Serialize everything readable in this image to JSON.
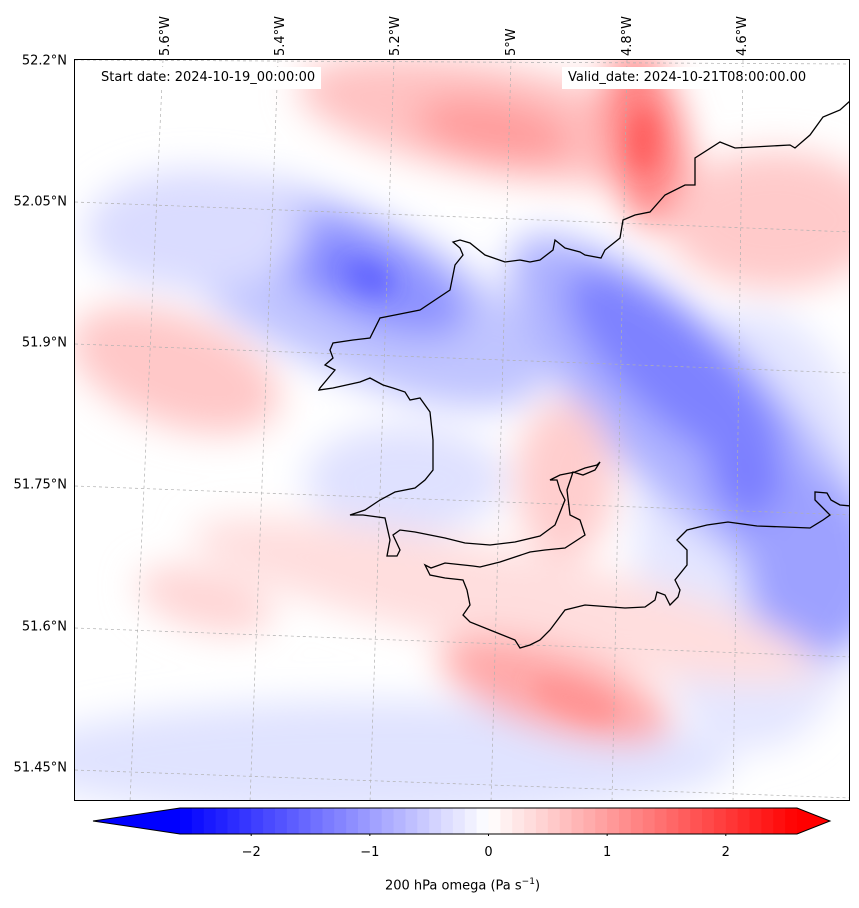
{
  "map": {
    "start_date": "Start date: 2024-10-19_00:00:00",
    "valid_date": "Valid_date: 2024-10-21T08:00:00.00",
    "lat_labels": [
      "52.2°N",
      "52.05°N",
      "51.9°N",
      "51.75°N",
      "51.6°N",
      "51.45°N"
    ],
    "lon_labels": [
      "5.6°W",
      "5.4°W",
      "5.2°W",
      "5°W",
      "4.8°W",
      "4.6°W"
    ],
    "field": "200 hPa omega",
    "colormap": "bwr",
    "colors": {
      "negative": "#0000ff",
      "zero": "#ffffff",
      "positive": "#ff0000",
      "coastline": "#000000",
      "grid": "#b0b0b0"
    }
  },
  "colorbar": {
    "ticks": [
      "−2",
      "−1",
      "0",
      "1",
      "2"
    ],
    "label_text": "200 hPa omega (Pa s",
    "label_exp": "−1",
    "label_close": ")",
    "range": [
      -2.6,
      2.6
    ],
    "extend": "both"
  }
}
